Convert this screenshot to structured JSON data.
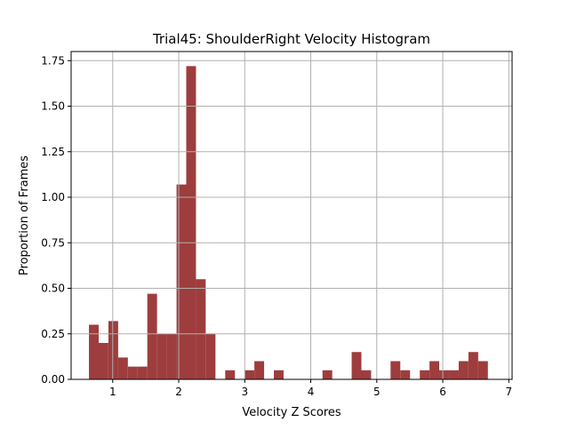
{
  "chart_data": {
    "type": "bar",
    "title": "Trial45: ShoulderRight Velocity Histogram",
    "xlabel": "Velocity Z Scores",
    "ylabel": "Proportion of Frames",
    "xlim": [
      0.37,
      7.05
    ],
    "ylim": [
      0,
      1.8
    ],
    "grid": true,
    "bar_color": "#9e3d3d",
    "grid_color": "#b0b0b0",
    "bin_width": 0.1474,
    "xticks": [
      1,
      2,
      3,
      4,
      5,
      6,
      7
    ],
    "xtick_labels": [
      "1",
      "2",
      "3",
      "4",
      "5",
      "6",
      "7"
    ],
    "yticks": [
      0,
      0.25,
      0.5,
      0.75,
      1.0,
      1.25,
      1.5,
      1.75
    ],
    "ytick_labels": [
      "0.00",
      "0.25",
      "0.50",
      "0.75",
      "1.00",
      "1.25",
      "1.50",
      "1.75"
    ],
    "bins_left": [
      0.64,
      0.787,
      0.935,
      1.082,
      1.23,
      1.377,
      1.524,
      1.672,
      1.819,
      1.967,
      2.114,
      2.261,
      2.409,
      2.556,
      2.704,
      2.851,
      2.998,
      3.146,
      3.293,
      3.441,
      3.588,
      3.735,
      3.883,
      4.03,
      4.178,
      4.325,
      4.472,
      4.62,
      4.767,
      4.915,
      5.062,
      5.209,
      5.357,
      5.504,
      5.652,
      5.799,
      5.946,
      6.094,
      6.241,
      6.389,
      6.536,
      6.683
    ],
    "values": [
      0.3,
      0.2,
      0.32,
      0.12,
      0.07,
      0.07,
      0.47,
      0.25,
      0.25,
      1.07,
      1.72,
      0.55,
      0.25,
      0,
      0.05,
      0,
      0.05,
      0.1,
      0,
      0.05,
      0,
      0,
      0,
      0,
      0.05,
      0,
      0,
      0.15,
      0.05,
      0,
      0,
      0.1,
      0.05,
      0,
      0.05,
      0.1,
      0.05,
      0.05,
      0.1,
      0.15,
      0.1,
      0
    ]
  }
}
